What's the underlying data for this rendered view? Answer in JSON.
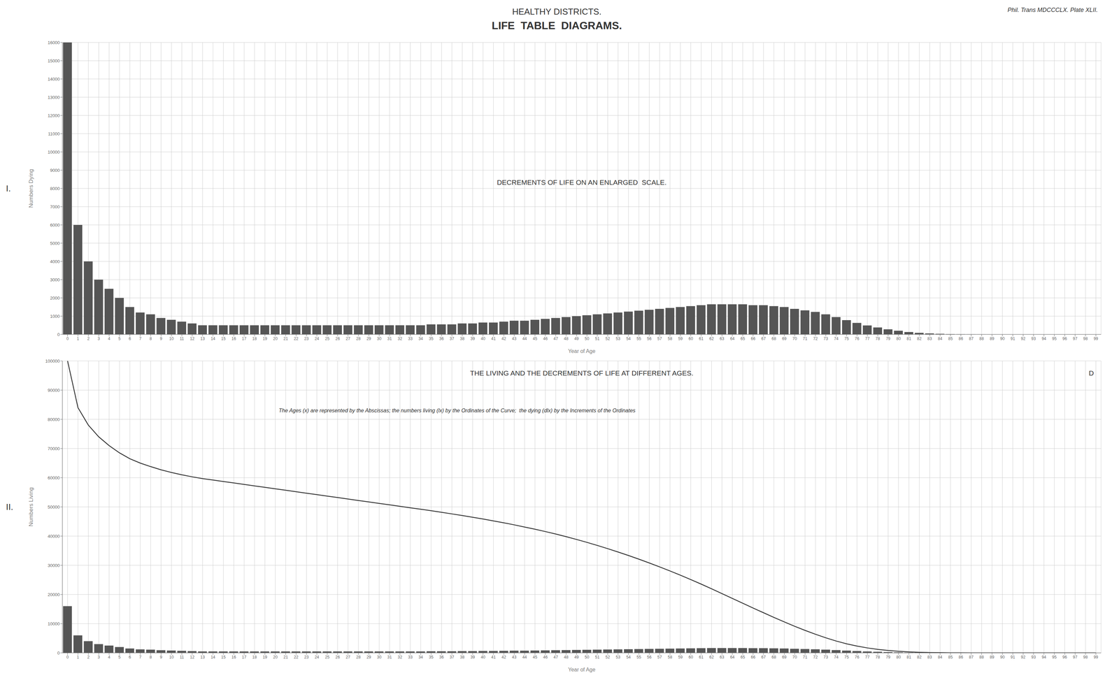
{
  "title": "LIFE  TABLE  DIAGRAMS.",
  "subtitle": "HEALTHY DISTRICTS.",
  "annotations": [
    "Phil. Trans MDCCCLX. Plate XLII."
  ],
  "chart_data": [
    {
      "type": "bar",
      "title": "DECREMENTS OF LIFE ON AN ENLARGED  SCALE.",
      "x_label": "Year of Age",
      "y_label": "Numbers Dying",
      "annotations": [
        "I."
      ],
      "x": [
        0,
        1,
        2,
        3,
        4,
        5,
        6,
        7,
        8,
        9,
        10,
        11,
        12,
        13,
        14,
        15,
        16,
        17,
        18,
        19,
        20,
        21,
        22,
        23,
        24,
        25,
        26,
        27,
        28,
        29,
        30,
        31,
        32,
        33,
        34,
        35,
        36,
        37,
        38,
        39,
        40,
        41,
        42,
        43,
        44,
        45,
        46,
        47,
        48,
        49,
        50,
        51,
        52,
        53,
        54,
        55,
        56,
        57,
        58,
        59,
        60,
        61,
        62,
        63,
        64,
        65,
        66,
        67,
        68,
        69,
        70,
        71,
        72,
        73,
        74,
        75,
        76,
        77,
        78,
        79,
        80,
        81,
        82,
        83,
        84,
        85,
        86,
        87,
        88,
        89,
        90,
        91,
        92,
        93,
        94,
        95,
        96,
        97,
        98,
        99
      ],
      "values": [
        16000,
        6000,
        4000,
        3000,
        2500,
        2000,
        1500,
        1200,
        1100,
        900,
        800,
        700,
        600,
        500,
        500,
        500,
        500,
        500,
        500,
        500,
        500,
        500,
        500,
        500,
        500,
        500,
        500,
        500,
        500,
        500,
        500,
        500,
        500,
        500,
        500,
        550,
        550,
        550,
        600,
        600,
        650,
        650,
        700,
        750,
        750,
        800,
        850,
        900,
        950,
        1000,
        1050,
        1100,
        1150,
        1200,
        1250,
        1300,
        1350,
        1400,
        1450,
        1500,
        1550,
        1600,
        1650,
        1650,
        1650,
        1650,
        1600,
        1600,
        1550,
        1500,
        1400,
        1320,
        1230,
        1100,
        950,
        780,
        630,
        490,
        380,
        280,
        200,
        130,
        85,
        53,
        32,
        18,
        10,
        6,
        3,
        2,
        1,
        0,
        0,
        0,
        0,
        0,
        0,
        0,
        0,
        0
      ],
      "color": "#555555",
      "xlim": [
        -0.5,
        99.5
      ],
      "xticks": [
        0,
        1,
        2,
        3,
        4,
        5,
        6,
        7,
        8,
        9,
        10,
        11,
        12,
        13,
        14,
        15,
        16,
        17,
        18,
        19,
        20,
        21,
        22,
        23,
        24,
        25,
        26,
        27,
        28,
        29,
        30,
        31,
        32,
        33,
        34,
        35,
        36,
        37,
        38,
        39,
        40,
        41,
        42,
        43,
        44,
        45,
        46,
        47,
        48,
        49,
        50,
        51,
        52,
        53,
        54,
        55,
        56,
        57,
        58,
        59,
        60,
        61,
        62,
        63,
        64,
        65,
        66,
        67,
        68,
        69,
        70,
        71,
        72,
        73,
        74,
        75,
        76,
        77,
        78,
        79,
        80,
        81,
        82,
        83,
        84,
        85,
        86,
        87,
        88,
        89,
        90,
        91,
        92,
        93,
        94,
        95,
        96,
        97,
        98,
        99
      ],
      "ylim": [
        0,
        16000
      ],
      "yticks": [
        0,
        1000,
        2000,
        3000,
        4000,
        5000,
        6000,
        7000,
        8000,
        9000,
        10000,
        11000,
        12000,
        13000,
        14000,
        15000,
        16000
      ],
      "grid": true
    },
    {
      "type": "bar",
      "title": "THE LIVING AND THE DECREMENTS OF LIFE AT DIFFERENT AGES.",
      "x_label": "Year of Age",
      "y_label": "Numbers Living",
      "annotations": [
        "II.",
        "D",
        "The Ages (x) are represented by the Abscissas; the numbers living (lx) by the Ordinates of the Curve;  the dying (dlx) by the Increments of the Ordinates"
      ],
      "x": [
        0,
        1,
        2,
        3,
        4,
        5,
        6,
        7,
        8,
        9,
        10,
        11,
        12,
        13,
        14,
        15,
        16,
        17,
        18,
        19,
        20,
        21,
        22,
        23,
        24,
        25,
        26,
        27,
        28,
        29,
        30,
        31,
        32,
        33,
        34,
        35,
        36,
        37,
        38,
        39,
        40,
        41,
        42,
        43,
        44,
        45,
        46,
        47,
        48,
        49,
        50,
        51,
        52,
        53,
        54,
        55,
        56,
        57,
        58,
        59,
        60,
        61,
        62,
        63,
        64,
        65,
        66,
        67,
        68,
        69,
        70,
        71,
        72,
        73,
        74,
        75,
        76,
        77,
        78,
        79,
        80,
        81,
        82,
        83,
        84,
        85,
        86,
        87,
        88,
        89,
        90,
        91,
        92,
        93,
        94,
        95,
        96,
        97,
        98,
        99
      ],
      "series": [
        {
          "type": "bar",
          "color": "#555555",
          "values": [
            16000,
            6000,
            4000,
            3000,
            2500,
            2000,
            1500,
            1200,
            1100,
            900,
            800,
            700,
            600,
            500,
            500,
            500,
            500,
            500,
            500,
            500,
            500,
            500,
            500,
            500,
            500,
            500,
            500,
            500,
            500,
            500,
            500,
            500,
            500,
            500,
            500,
            550,
            550,
            550,
            600,
            600,
            650,
            650,
            700,
            750,
            750,
            800,
            850,
            900,
            950,
            1000,
            1050,
            1100,
            1150,
            1200,
            1250,
            1300,
            1350,
            1400,
            1450,
            1500,
            1550,
            1600,
            1650,
            1650,
            1650,
            1650,
            1600,
            1600,
            1550,
            1500,
            1400,
            1320,
            1230,
            1100,
            950,
            780,
            630,
            490,
            380,
            280,
            200,
            130,
            85,
            53,
            32,
            18,
            10,
            6,
            3,
            2,
            1,
            0,
            0,
            0,
            0,
            0,
            0,
            0,
            0,
            0
          ]
        },
        {
          "type": "line",
          "color": "#333333",
          "values": [
            100000,
            84000,
            78000,
            74000,
            71000,
            68500,
            66500,
            65000,
            63800,
            62700,
            61800,
            61000,
            60300,
            59700,
            59200,
            58700,
            58200,
            57700,
            57200,
            56700,
            56200,
            55700,
            55200,
            54700,
            54200,
            53700,
            53200,
            52700,
            52200,
            51700,
            51200,
            50700,
            50200,
            49700,
            49200,
            48700,
            48150,
            47600,
            47050,
            46450,
            45850,
            45200,
            44550,
            43850,
            43100,
            42350,
            41550,
            40700,
            39800,
            38850,
            37850,
            36800,
            35700,
            34550,
            33350,
            32100,
            30800,
            29450,
            28050,
            26600,
            25100,
            23550,
            21950,
            20300,
            18650,
            17000,
            15350,
            13750,
            12150,
            10600,
            9100,
            7700,
            6380,
            5150,
            4050,
            3100,
            2320,
            1690,
            1200,
            820,
            540,
            340,
            210,
            125,
            72,
            40,
            22,
            12,
            6,
            3,
            1,
            0,
            0,
            0,
            0,
            0,
            0,
            0,
            0,
            0
          ]
        }
      ],
      "xlim": [
        -0.5,
        99.5
      ],
      "xticks": [
        0,
        1,
        2,
        3,
        4,
        5,
        6,
        7,
        8,
        9,
        10,
        11,
        12,
        13,
        14,
        15,
        16,
        17,
        18,
        19,
        20,
        21,
        22,
        23,
        24,
        25,
        26,
        27,
        28,
        29,
        30,
        31,
        32,
        33,
        34,
        35,
        36,
        37,
        38,
        39,
        40,
        41,
        42,
        43,
        44,
        45,
        46,
        47,
        48,
        49,
        50,
        51,
        52,
        53,
        54,
        55,
        56,
        57,
        58,
        59,
        60,
        61,
        62,
        63,
        64,
        65,
        66,
        67,
        68,
        69,
        70,
        71,
        72,
        73,
        74,
        75,
        76,
        77,
        78,
        79,
        80,
        81,
        82,
        83,
        84,
        85,
        86,
        87,
        88,
        89,
        90,
        91,
        92,
        93,
        94,
        95,
        96,
        97,
        98,
        99
      ],
      "ylim": [
        0,
        100000
      ],
      "yticks": [
        0,
        10000,
        20000,
        30000,
        40000,
        50000,
        60000,
        70000,
        80000,
        90000,
        100000
      ],
      "grid": true
    }
  ]
}
